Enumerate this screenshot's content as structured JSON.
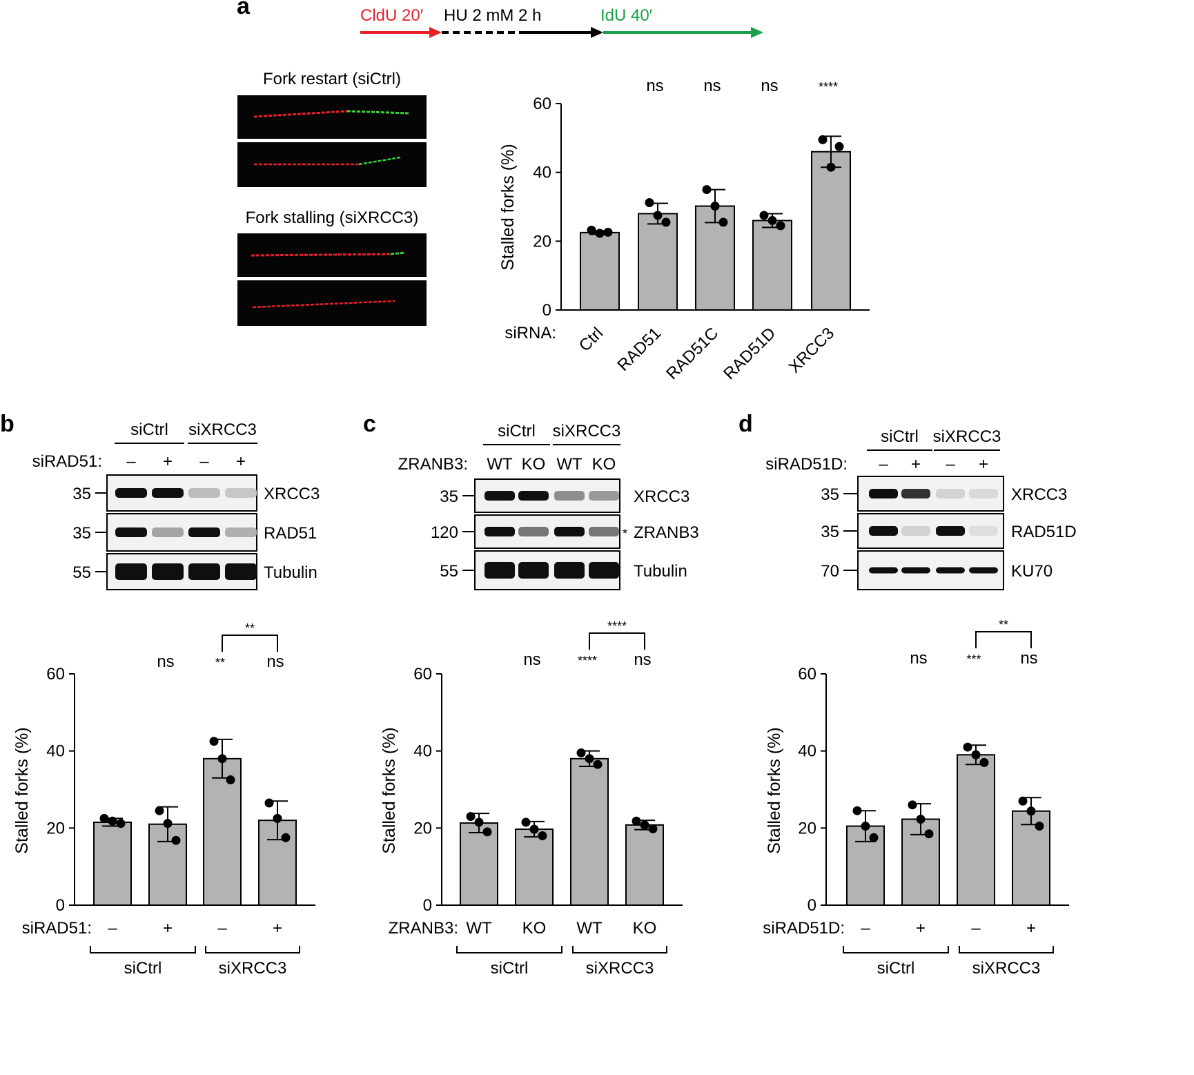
{
  "figure": {
    "panel_letters": {
      "a": "a",
      "b": "b",
      "c": "c",
      "d": "d"
    },
    "protocol": {
      "cldu": "CldU 20′",
      "hu": "HU 2 mM 2 h",
      "idu": "IdU 40′",
      "colors": {
        "cldu": "#e8202a",
        "idu": "#19a04a",
        "hu": "#000000"
      }
    },
    "fiber_images": {
      "restart_title": "Fork restart (siCtrl)",
      "stalling_title": "Fork stalling (siXRCC3)"
    },
    "bar_color": "#b3b3b3",
    "blots": {
      "b": {
        "groups": [
          "siCtrl",
          "siXRCC3"
        ],
        "row_label": "siRAD51:",
        "lanes": [
          "–",
          "+",
          "–",
          "+"
        ],
        "bands": [
          {
            "marker": "35",
            "name": "XRCC3",
            "intensities": [
              1.0,
              1.0,
              0.25,
              0.2
            ]
          },
          {
            "marker": "35",
            "name": "RAD51",
            "intensities": [
              1.0,
              0.35,
              1.0,
              0.3
            ]
          },
          {
            "marker": "55",
            "name": "Tubulin",
            "intensities": [
              1.0,
              1.0,
              1.0,
              1.0
            ]
          }
        ]
      },
      "c": {
        "groups": [
          "siCtrl",
          "siXRCC3"
        ],
        "row_label": "ZRANB3:",
        "lanes": [
          "WT",
          "KO",
          "WT",
          "KO"
        ],
        "asterisk": "*",
        "bands": [
          {
            "marker": "35",
            "name": "XRCC3",
            "intensities": [
              1.0,
              1.0,
              0.45,
              0.4
            ]
          },
          {
            "marker": "120",
            "name": "ZRANB3",
            "intensities": [
              1.0,
              0.55,
              1.0,
              0.55
            ]
          },
          {
            "marker": "55",
            "name": "Tubulin",
            "intensities": [
              1.0,
              1.0,
              1.0,
              1.0
            ]
          }
        ]
      },
      "d": {
        "groups": [
          "siCtrl",
          "siXRCC3"
        ],
        "row_label": "siRAD51D:",
        "lanes": [
          "–",
          "+",
          "–",
          "+"
        ],
        "bands": [
          {
            "marker": "35",
            "name": "XRCC3",
            "intensities": [
              1.0,
              0.85,
              0.15,
              0.12
            ]
          },
          {
            "marker": "35",
            "name": "RAD51D",
            "intensities": [
              1.0,
              0.15,
              1.0,
              0.1
            ]
          },
          {
            "marker": "70",
            "name": "KU70",
            "intensities": [
              1.0,
              1.0,
              1.0,
              1.0
            ]
          }
        ]
      }
    }
  },
  "chart_data": [
    {
      "panel": "a",
      "type": "bar",
      "ylabel": "Stalled forks (%)",
      "ylim": [
        0,
        60
      ],
      "yticks": [
        0,
        20,
        40,
        60
      ],
      "xrow_label": "siRNA:",
      "categories": [
        "Ctrl",
        "RAD51",
        "RAD51C",
        "RAD51D",
        "XRCC3"
      ],
      "values": [
        22.5,
        28,
        30.2,
        26,
        46
      ],
      "sd": [
        0.5,
        3,
        4.8,
        2,
        4.5
      ],
      "points": [
        [
          23.2,
          22.6,
          22.3
        ],
        [
          31.2,
          25.5,
          27.5
        ],
        [
          35,
          25.5,
          30.2
        ],
        [
          27.5,
          24.5,
          26
        ],
        [
          49.5,
          47.5,
          41.5
        ]
      ],
      "significance": [
        "ns",
        "ns",
        "ns",
        "****"
      ]
    },
    {
      "panel": "b",
      "type": "bar",
      "ylabel": "Stalled forks (%)",
      "ylim": [
        0,
        60
      ],
      "yticks": [
        0,
        20,
        40,
        60
      ],
      "xrow_label": "siRAD51:",
      "categories": [
        "–",
        "+",
        "–",
        "+"
      ],
      "groups": [
        {
          "label": "siCtrl",
          "span": [
            0,
            1
          ]
        },
        {
          "label": "siXRCC3",
          "span": [
            2,
            3
          ]
        }
      ],
      "values": [
        21.5,
        21,
        38,
        22
      ],
      "sd": [
        1,
        4.5,
        5,
        5
      ],
      "points": [
        [
          22.5,
          21.2,
          21.8
        ],
        [
          24.5,
          16.8,
          21.2
        ],
        [
          42.5,
          32.5,
          38
        ],
        [
          26.5,
          17.5,
          22.5
        ]
      ],
      "significance": [
        "",
        "ns",
        "**",
        "ns"
      ],
      "bracket": {
        "from": 2,
        "to": 3,
        "label": "**"
      }
    },
    {
      "panel": "c",
      "type": "bar",
      "ylabel": "Stalled forks (%)",
      "ylim": [
        0,
        60
      ],
      "yticks": [
        0,
        20,
        40,
        60
      ],
      "xrow_label": "ZRANB3:",
      "categories": [
        "WT",
        "KO",
        "WT",
        "KO"
      ],
      "groups": [
        {
          "label": "siCtrl",
          "span": [
            0,
            1
          ]
        },
        {
          "label": "siXRCC3",
          "span": [
            2,
            3
          ]
        }
      ],
      "values": [
        21.3,
        19.7,
        38,
        20.8
      ],
      "sd": [
        2.5,
        2,
        2,
        1.2
      ],
      "points": [
        [
          23,
          19,
          21.5
        ],
        [
          21.5,
          18,
          19.7
        ],
        [
          39.5,
          36.5,
          38
        ],
        [
          21.8,
          19.8,
          20.8
        ]
      ],
      "significance": [
        "",
        "ns",
        "****",
        "ns"
      ],
      "bracket": {
        "from": 2,
        "to": 3,
        "label": "****"
      }
    },
    {
      "panel": "d",
      "type": "bar",
      "ylabel": "Stalled forks (%)",
      "ylim": [
        0,
        60
      ],
      "yticks": [
        0,
        20,
        40,
        60
      ],
      "xrow_label": "siRAD51D:",
      "categories": [
        "–",
        "+",
        "–",
        "+"
      ],
      "groups": [
        {
          "label": "siCtrl",
          "span": [
            0,
            1
          ]
        },
        {
          "label": "siXRCC3",
          "span": [
            2,
            3
          ]
        }
      ],
      "values": [
        20.5,
        22.3,
        39,
        24.4
      ],
      "sd": [
        4,
        4,
        2.5,
        3.5
      ],
      "points": [
        [
          24.5,
          17.5,
          20.5
        ],
        [
          26,
          18.5,
          22.3
        ],
        [
          41,
          37,
          39
        ],
        [
          27,
          20.5,
          24.4
        ]
      ],
      "significance": [
        "",
        "ns",
        "***",
        "ns"
      ],
      "bracket": {
        "from": 2,
        "to": 3,
        "label": "**"
      }
    }
  ]
}
